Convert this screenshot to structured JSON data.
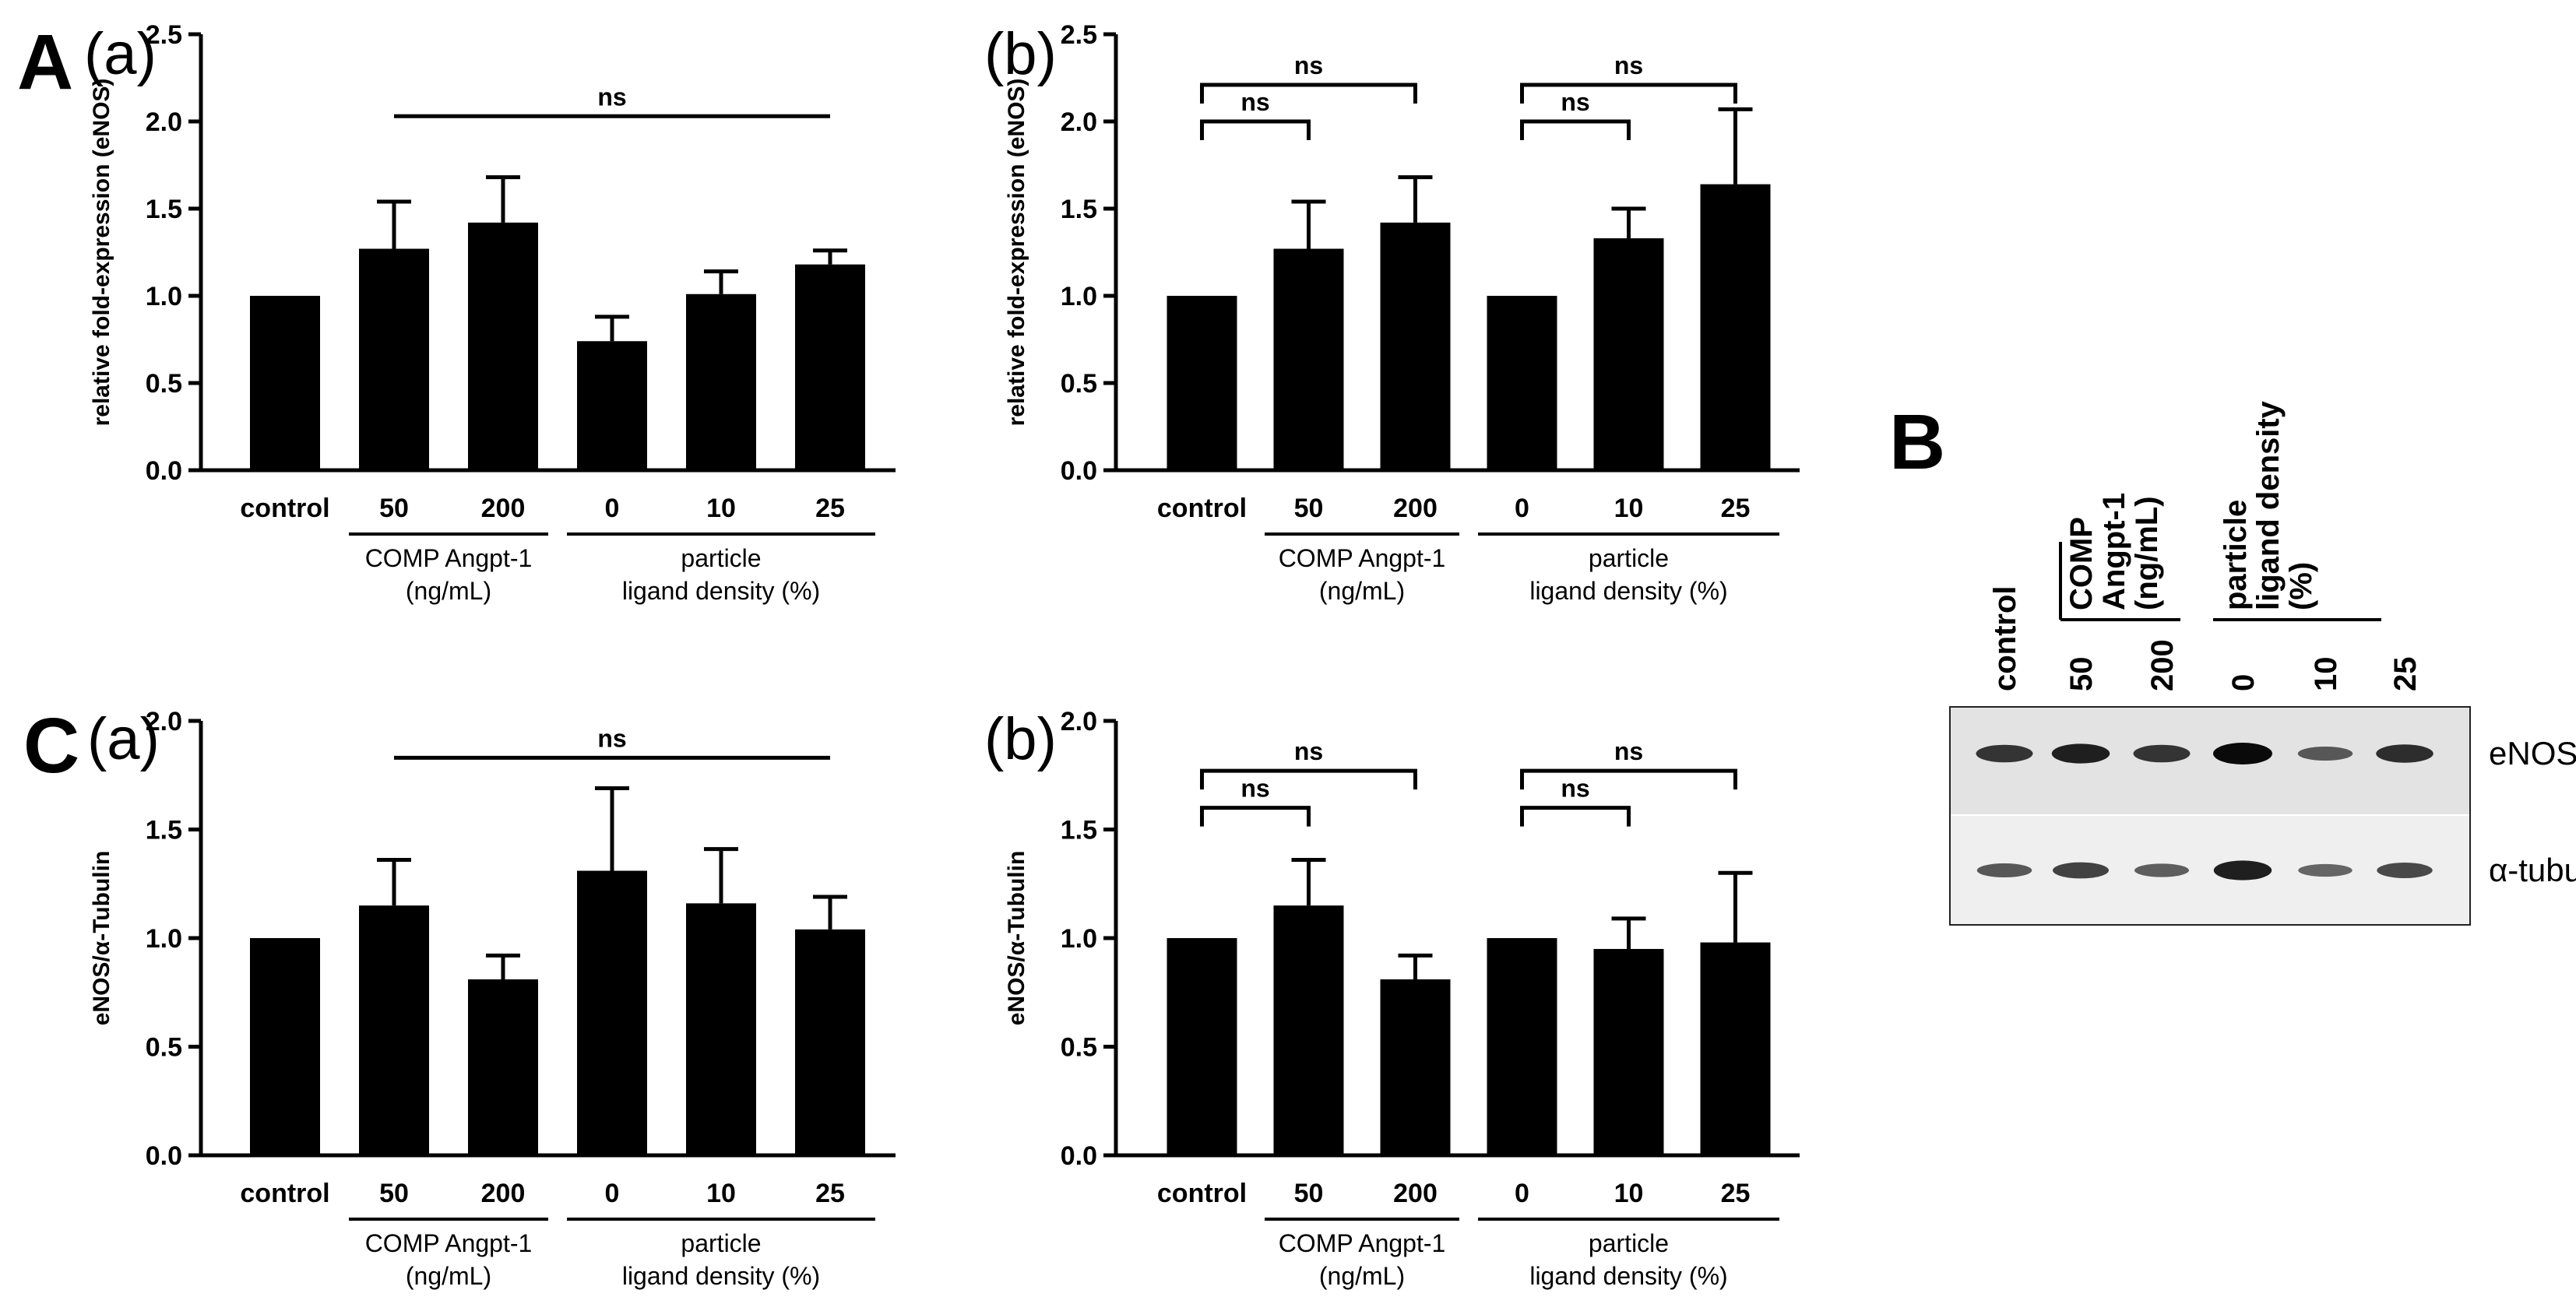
{
  "figure": {
    "panel_labels": {
      "A": "A",
      "B": "B",
      "C": "C"
    },
    "sub_labels": {
      "a": "(a)",
      "b": "(b)"
    }
  },
  "groups": {
    "comp": [
      "COMP Angpt-1",
      "(ng/mL)"
    ],
    "particle": [
      "particle",
      "ligand density (%)"
    ]
  },
  "significance_label": "ns",
  "chart_data": [
    {
      "id": "A-a",
      "type": "bar",
      "panel": "A",
      "subpanel": "(a)",
      "categories": [
        "control",
        "50",
        "200",
        "0",
        "10",
        "25"
      ],
      "values": [
        1.0,
        1.27,
        1.42,
        0.74,
        1.01,
        1.18
      ],
      "errors": [
        0,
        0.27,
        0.26,
        0.14,
        0.13,
        0.08
      ],
      "ylabel": "relative fold-expression (eNOS)",
      "ylim": [
        0,
        2.5
      ],
      "yticks": [
        "0.0",
        "0.5",
        "1.0",
        "1.5",
        "2.0",
        "2.5"
      ],
      "significance": [
        {
          "label": "ns",
          "type": "line",
          "from": 1,
          "to": 5,
          "y": 2.03
        }
      ]
    },
    {
      "id": "A-b",
      "type": "bar",
      "panel": "A",
      "subpanel": "(b)",
      "categories": [
        "control",
        "50",
        "200",
        "0",
        "10",
        "25"
      ],
      "values": [
        1.0,
        1.27,
        1.42,
        1.0,
        1.33,
        1.64
      ],
      "errors": [
        0,
        0.27,
        0.26,
        0,
        0.17,
        0.43
      ],
      "ylabel": "relative fold-expression (eNOS)",
      "ylim": [
        0,
        2.5
      ],
      "yticks": [
        "0.0",
        "0.5",
        "1.0",
        "1.5",
        "2.0",
        "2.5"
      ],
      "significance": [
        {
          "label": "ns",
          "type": "bracket",
          "from": 0,
          "to": 1,
          "y": 2.0
        },
        {
          "label": "ns",
          "type": "bracket",
          "from": 0,
          "to": 2,
          "y": 2.21
        },
        {
          "label": "ns",
          "type": "bracket",
          "from": 3,
          "to": 4,
          "y": 2.0
        },
        {
          "label": "ns",
          "type": "bracket",
          "from": 3,
          "to": 5,
          "y": 2.21
        }
      ]
    },
    {
      "id": "C-a",
      "type": "bar",
      "panel": "C",
      "subpanel": "(a)",
      "categories": [
        "control",
        "50",
        "200",
        "0",
        "10",
        "25"
      ],
      "values": [
        1.0,
        1.15,
        0.81,
        1.31,
        1.16,
        1.04
      ],
      "errors": [
        0,
        0.21,
        0.11,
        0.38,
        0.25,
        0.15
      ],
      "ylabel": "eNOS/α-Tubulin",
      "ylim": [
        0,
        2.0
      ],
      "yticks": [
        "0.0",
        "0.5",
        "1.0",
        "1.5",
        "2.0"
      ],
      "significance": [
        {
          "label": "ns",
          "type": "line",
          "from": 1,
          "to": 5,
          "y": 1.83
        }
      ]
    },
    {
      "id": "C-b",
      "type": "bar",
      "panel": "C",
      "subpanel": "(b)",
      "categories": [
        "control",
        "50",
        "200",
        "0",
        "10",
        "25"
      ],
      "values": [
        1.0,
        1.15,
        0.81,
        1.0,
        0.95,
        0.98
      ],
      "errors": [
        0,
        0.21,
        0.11,
        0,
        0.14,
        0.32
      ],
      "ylabel": "eNOS/α-Tubulin",
      "ylim": [
        0,
        2.0
      ],
      "yticks": [
        "0.0",
        "0.5",
        "1.0",
        "1.5",
        "2.0"
      ],
      "significance": [
        {
          "label": "ns",
          "type": "bracket",
          "from": 0,
          "to": 1,
          "y": 1.6
        },
        {
          "label": "ns",
          "type": "bracket",
          "from": 0,
          "to": 2,
          "y": 1.77
        },
        {
          "label": "ns",
          "type": "bracket",
          "from": 3,
          "to": 4,
          "y": 1.6
        },
        {
          "label": "ns",
          "type": "bracket",
          "from": 3,
          "to": 5,
          "y": 1.77
        }
      ]
    }
  ],
  "western_blot": {
    "lanes": [
      "control",
      "50",
      "200",
      "0",
      "10",
      "25"
    ],
    "comp_header": [
      "COMP",
      "Angpt-1",
      "(ng/mL)"
    ],
    "particle_header": [
      "particle",
      "ligand density",
      "(%)"
    ],
    "rows": [
      {
        "label": "eNOS",
        "intensities": [
          0.7,
          0.85,
          0.7,
          1.0,
          0.45,
          0.75
        ]
      },
      {
        "label": "α-tubulin",
        "intensities": [
          0.45,
          0.6,
          0.4,
          0.85,
          0.35,
          0.55
        ]
      }
    ]
  }
}
